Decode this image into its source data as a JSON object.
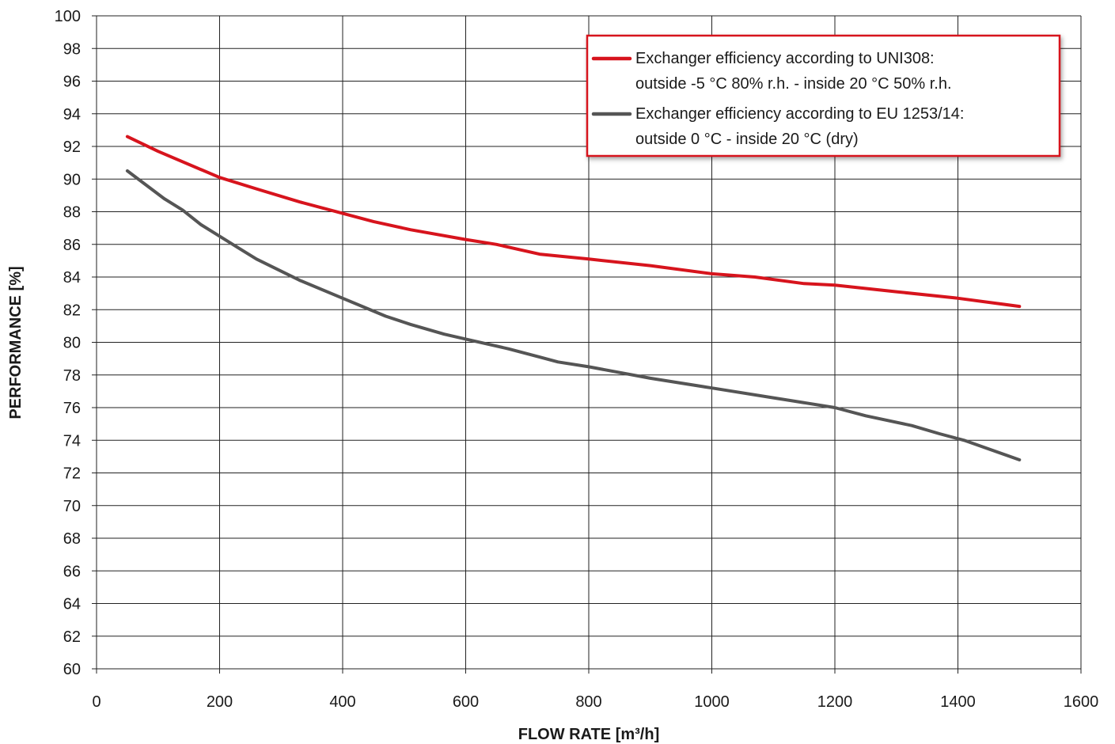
{
  "chart_data": {
    "type": "line",
    "title": "",
    "xlabel": "FLOW RATE [m³/h]",
    "ylabel": "PERFORMANCE [%]",
    "xlim": [
      0,
      1600
    ],
    "ylim": [
      60,
      100
    ],
    "x_ticks": [
      0,
      200,
      400,
      600,
      800,
      1000,
      1200,
      1400,
      1600
    ],
    "y_ticks": [
      60,
      62,
      64,
      66,
      68,
      70,
      72,
      74,
      76,
      78,
      80,
      82,
      84,
      86,
      88,
      90,
      92,
      94,
      96,
      98,
      100
    ],
    "grid": true,
    "legend_position": "top-right",
    "series": [
      {
        "name_lines": [
          "Exchanger efficiency according to UNI308:",
          "outside -5 °C 80% r.h. - inside 20 °C 50% r.h."
        ],
        "color": "#d7141d",
        "x": [
          50,
          100,
          200,
          260,
          330,
          400,
          450,
          510,
          600,
          650,
          720,
          800,
          900,
          1000,
          1070,
          1150,
          1200,
          1300,
          1400,
          1500
        ],
        "y": [
          92.6,
          91.7,
          90.1,
          89.4,
          88.6,
          87.9,
          87.4,
          86.9,
          86.3,
          86.0,
          85.4,
          85.1,
          84.7,
          84.2,
          84.0,
          83.6,
          83.5,
          83.1,
          82.7,
          82.2
        ]
      },
      {
        "name_lines": [
          "Exchanger efficiency according to EU 1253/14:",
          "outside 0 °C - inside 20 °C (dry)"
        ],
        "color": "#555555",
        "x": [
          50,
          110,
          140,
          170,
          200,
          230,
          260,
          330,
          400,
          470,
          510,
          565,
          600,
          670,
          720,
          750,
          800,
          900,
          1000,
          1100,
          1200,
          1250,
          1325,
          1370,
          1410,
          1500
        ],
        "y": [
          90.5,
          88.8,
          88.1,
          87.2,
          86.5,
          85.8,
          85.1,
          83.8,
          82.7,
          81.6,
          81.1,
          80.5,
          80.2,
          79.6,
          79.1,
          78.8,
          78.5,
          77.8,
          77.2,
          76.6,
          76.0,
          75.5,
          74.9,
          74.4,
          74.0,
          72.8
        ]
      }
    ]
  }
}
